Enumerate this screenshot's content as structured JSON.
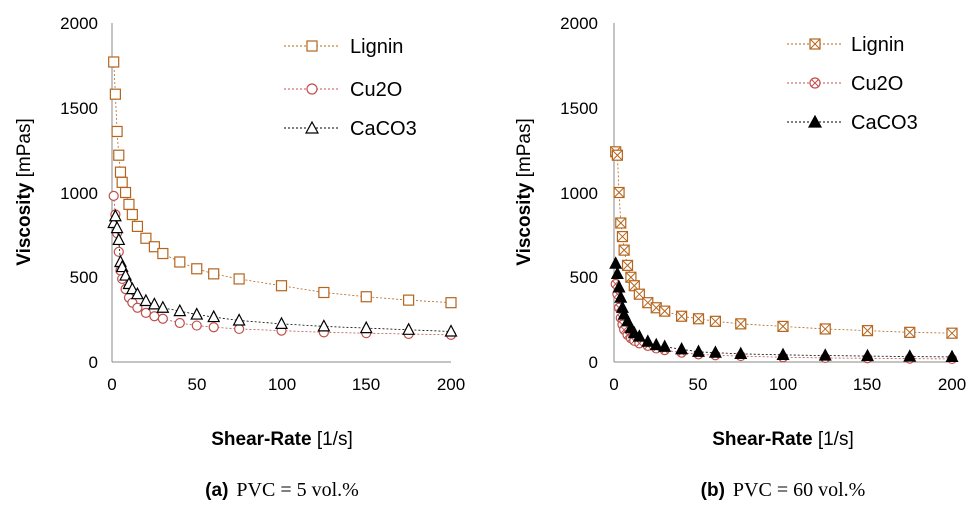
{
  "colors": {
    "lignin": "#b5651d",
    "cu2o": "#c0504d",
    "caco3": "#000000"
  },
  "panels": [
    {
      "caption_label": "(a)",
      "caption_text": "PVC = 5 vol.%",
      "xlabel_bold": "Shear-Rate",
      "xlabel_unit": " [1/s]",
      "ylabel_bold": "Viscosity",
      "ylabel_unit": " [mPas]",
      "yticks": [
        "0",
        "500",
        "1000",
        "1500",
        "2000"
      ],
      "xticks": [
        "0",
        "50",
        "100",
        "150",
        "200"
      ],
      "legend": [
        "Lignin",
        "Cu2O",
        "CaCO3"
      ]
    },
    {
      "caption_label": "(b)",
      "caption_text": "PVC = 60 vol.%",
      "xlabel_bold": "Shear-Rate",
      "xlabel_unit": " [1/s]",
      "ylabel_bold": "Viscosity",
      "ylabel_unit": " [mPas]",
      "yticks": [
        "0",
        "500",
        "1000",
        "1500",
        "2000"
      ],
      "xticks": [
        "0",
        "50",
        "100",
        "150",
        "200"
      ],
      "legend": [
        "Lignin",
        "Cu2O",
        "CaCO3"
      ]
    }
  ],
  "chart_data": [
    {
      "type": "scatter",
      "title": "",
      "xlabel": "Shear-Rate [1/s]",
      "ylabel": "Viscosity [mPas]",
      "xlim": [
        0,
        200
      ],
      "ylim": [
        0,
        2000
      ],
      "grid": false,
      "legend_position": "top-right",
      "series": [
        {
          "name": "Lignin",
          "marker": "square",
          "color": "#b5651d",
          "x": [
            1,
            2,
            3,
            4,
            5,
            6,
            8,
            10,
            12,
            15,
            20,
            25,
            30,
            40,
            50,
            60,
            75,
            100,
            125,
            150,
            175,
            200
          ],
          "y": [
            1770,
            1580,
            1360,
            1220,
            1120,
            1060,
            1000,
            930,
            870,
            800,
            730,
            680,
            640,
            590,
            550,
            520,
            490,
            450,
            410,
            385,
            365,
            350
          ]
        },
        {
          "name": "Cu2O",
          "marker": "circle",
          "color": "#c0504d",
          "x": [
            1,
            2,
            3,
            4,
            5,
            6,
            8,
            10,
            12,
            15,
            20,
            25,
            30,
            40,
            50,
            60,
            75,
            100,
            125,
            150,
            175,
            200
          ],
          "y": [
            980,
            870,
            760,
            650,
            540,
            490,
            430,
            380,
            350,
            320,
            290,
            270,
            255,
            230,
            215,
            205,
            195,
            185,
            175,
            170,
            165,
            160
          ]
        },
        {
          "name": "CaCO3",
          "marker": "triangle",
          "color": "#000000",
          "x": [
            1,
            2,
            3,
            4,
            5,
            6,
            8,
            10,
            12,
            15,
            20,
            25,
            30,
            40,
            50,
            60,
            75,
            100,
            125,
            150,
            175,
            200
          ],
          "y": [
            820,
            860,
            790,
            720,
            590,
            560,
            510,
            460,
            430,
            400,
            360,
            340,
            320,
            300,
            280,
            265,
            245,
            225,
            210,
            200,
            190,
            180
          ]
        }
      ]
    },
    {
      "type": "scatter",
      "title": "",
      "xlabel": "Shear-Rate [1/s]",
      "ylabel": "Viscosity [mPas]",
      "xlim": [
        0,
        200
      ],
      "ylim": [
        0,
        2000
      ],
      "grid": false,
      "legend_position": "top-right",
      "series": [
        {
          "name": "Lignin",
          "marker": "square-x",
          "color": "#b5651d",
          "x": [
            1,
            2,
            3,
            4,
            5,
            6,
            8,
            10,
            12,
            15,
            20,
            25,
            30,
            40,
            50,
            60,
            75,
            100,
            125,
            150,
            175,
            200
          ],
          "y": [
            1240,
            1220,
            1000,
            820,
            740,
            660,
            570,
            500,
            450,
            400,
            350,
            320,
            300,
            270,
            255,
            240,
            225,
            210,
            195,
            185,
            175,
            170
          ]
        },
        {
          "name": "Cu2O",
          "marker": "circle-x",
          "color": "#c0504d",
          "x": [
            1,
            2,
            3,
            4,
            5,
            6,
            8,
            10,
            12,
            15,
            20,
            25,
            30,
            40,
            50,
            60,
            75,
            100,
            125,
            150,
            175,
            200
          ],
          "y": [
            460,
            400,
            320,
            260,
            220,
            190,
            160,
            140,
            125,
            110,
            95,
            80,
            70,
            55,
            45,
            40,
            35,
            28,
            24,
            22,
            20,
            18
          ]
        },
        {
          "name": "CaCO3",
          "marker": "triangle-x",
          "color": "#000000",
          "x": [
            1,
            2,
            3,
            4,
            5,
            6,
            8,
            10,
            12,
            15,
            20,
            25,
            30,
            40,
            50,
            60,
            75,
            100,
            125,
            150,
            175,
            200
          ],
          "y": [
            580,
            520,
            440,
            380,
            320,
            280,
            240,
            200,
            170,
            150,
            120,
            100,
            90,
            75,
            60,
            55,
            48,
            42,
            38,
            35,
            32,
            30
          ]
        }
      ]
    }
  ]
}
